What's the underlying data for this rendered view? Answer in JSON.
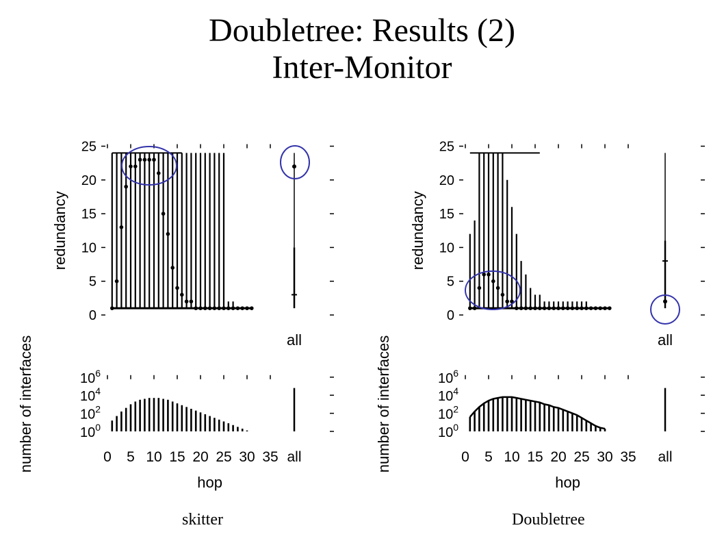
{
  "slide": {
    "title": "Doubletree: Results (2)",
    "subtitle": "Inter-Monitor"
  },
  "colors": {
    "ink": "#000000",
    "highlight": "#3333aa"
  },
  "chart_data": [
    {
      "name": "skitter",
      "caption": "skitter",
      "type": "box",
      "top_panel": {
        "ylabel": "redundancy",
        "ylim": [
          0,
          25
        ],
        "yticks": [
          0,
          5,
          10,
          15,
          20,
          25
        ],
        "all_label": "all",
        "hops": [
          1,
          2,
          3,
          4,
          5,
          6,
          7,
          8,
          9,
          10,
          11,
          12,
          13,
          14,
          15,
          16,
          17,
          18,
          19,
          20,
          21,
          22,
          23,
          24,
          25,
          26,
          27,
          28,
          29,
          30,
          31
        ],
        "median": [
          1,
          5,
          13,
          19,
          22,
          22,
          23,
          23,
          23,
          23,
          21,
          15,
          12,
          7,
          4,
          3,
          2,
          2,
          1,
          1,
          1,
          1,
          1,
          1,
          1,
          1,
          1,
          1,
          1,
          1,
          1
        ],
        "whisker_high": [
          24,
          24,
          24,
          24,
          24,
          24,
          24,
          24,
          24,
          24,
          24,
          24,
          24,
          24,
          24,
          24,
          24,
          24,
          24,
          24,
          24,
          24,
          24,
          24,
          24,
          2,
          2,
          1,
          1,
          1,
          1
        ],
        "whisker_low": [
          1,
          1,
          1,
          1,
          1,
          1,
          1,
          1,
          1,
          1,
          1,
          1,
          1,
          1,
          1,
          1,
          1,
          1,
          1,
          1,
          1,
          1,
          1,
          1,
          1,
          1,
          1,
          1,
          1,
          1,
          1
        ],
        "all": {
          "whisker_high": 24,
          "median": 22,
          "box_high": 10,
          "box_low": 1,
          "mark": 3
        },
        "highlight": "outlier cluster and all-median circled"
      },
      "bottom_panel": {
        "ylabel": "number of interfaces",
        "ytick_labels": [
          "10^6",
          "10^4",
          "10^2",
          "10^0"
        ],
        "xlabel": "hop",
        "xticks": [
          0,
          5,
          10,
          15,
          20,
          25,
          30,
          35
        ],
        "all_label": "all",
        "log10_counts": [
          1.2,
          1.7,
          2.2,
          2.6,
          3.0,
          3.3,
          3.5,
          3.6,
          3.7,
          3.7,
          3.7,
          3.6,
          3.5,
          3.3,
          3.1,
          2.9,
          2.7,
          2.5,
          2.3,
          2.1,
          1.9,
          1.7,
          1.5,
          1.3,
          1.1,
          0.9,
          0.7,
          0.5,
          0.3,
          0.1
        ],
        "all_log10": 4.8
      }
    },
    {
      "name": "doubletree",
      "caption": "Doubletree",
      "type": "box",
      "top_panel": {
        "ylabel": "redundancy",
        "ylim": [
          0,
          25
        ],
        "yticks": [
          0,
          5,
          10,
          15,
          20,
          25
        ],
        "all_label": "all",
        "hops": [
          1,
          2,
          3,
          4,
          5,
          6,
          7,
          8,
          9,
          10,
          11,
          12,
          13,
          14,
          15,
          16,
          17,
          18,
          19,
          20,
          21,
          22,
          23,
          24,
          25,
          26,
          27,
          28,
          29,
          30,
          31
        ],
        "median": [
          1,
          1,
          4,
          6,
          6,
          5,
          4,
          3,
          2,
          2,
          1,
          1,
          1,
          1,
          1,
          1,
          1,
          1,
          1,
          1,
          1,
          1,
          1,
          1,
          1,
          1,
          1,
          1,
          1,
          1,
          1
        ],
        "whisker_high": [
          12,
          14,
          24,
          24,
          24,
          24,
          24,
          24,
          20,
          16,
          12,
          8,
          6,
          4,
          3,
          3,
          2,
          2,
          2,
          2,
          2,
          2,
          2,
          2,
          2,
          2,
          1,
          1,
          1,
          1,
          1
        ],
        "whisker_low": [
          1,
          1,
          1,
          1,
          1,
          1,
          1,
          1,
          1,
          1,
          1,
          1,
          1,
          1,
          1,
          1,
          1,
          1,
          1,
          1,
          1,
          1,
          1,
          1,
          1,
          1,
          1,
          1,
          1,
          1,
          1
        ],
        "all": {
          "whisker_high": 24,
          "median": 2,
          "box_high": 11,
          "box_low": 1,
          "mark": 8
        },
        "highlight": "median cluster and all-median circled"
      },
      "bottom_panel": {
        "ylabel": "number of interfaces",
        "ytick_labels": [
          "10^6",
          "10^4",
          "10^2",
          "10^0"
        ],
        "xlabel": "hop",
        "xticks": [
          0,
          5,
          10,
          15,
          20,
          25,
          30,
          35
        ],
        "all_label": "all",
        "log10_counts": [
          1.6,
          2.2,
          2.7,
          3.1,
          3.4,
          3.6,
          3.7,
          3.8,
          3.8,
          3.8,
          3.7,
          3.6,
          3.5,
          3.4,
          3.3,
          3.2,
          3.0,
          2.9,
          2.7,
          2.6,
          2.4,
          2.2,
          2.0,
          1.8,
          1.5,
          1.2,
          0.9,
          0.6,
          0.4,
          0.3
        ],
        "all_log10": 4.8
      }
    }
  ]
}
